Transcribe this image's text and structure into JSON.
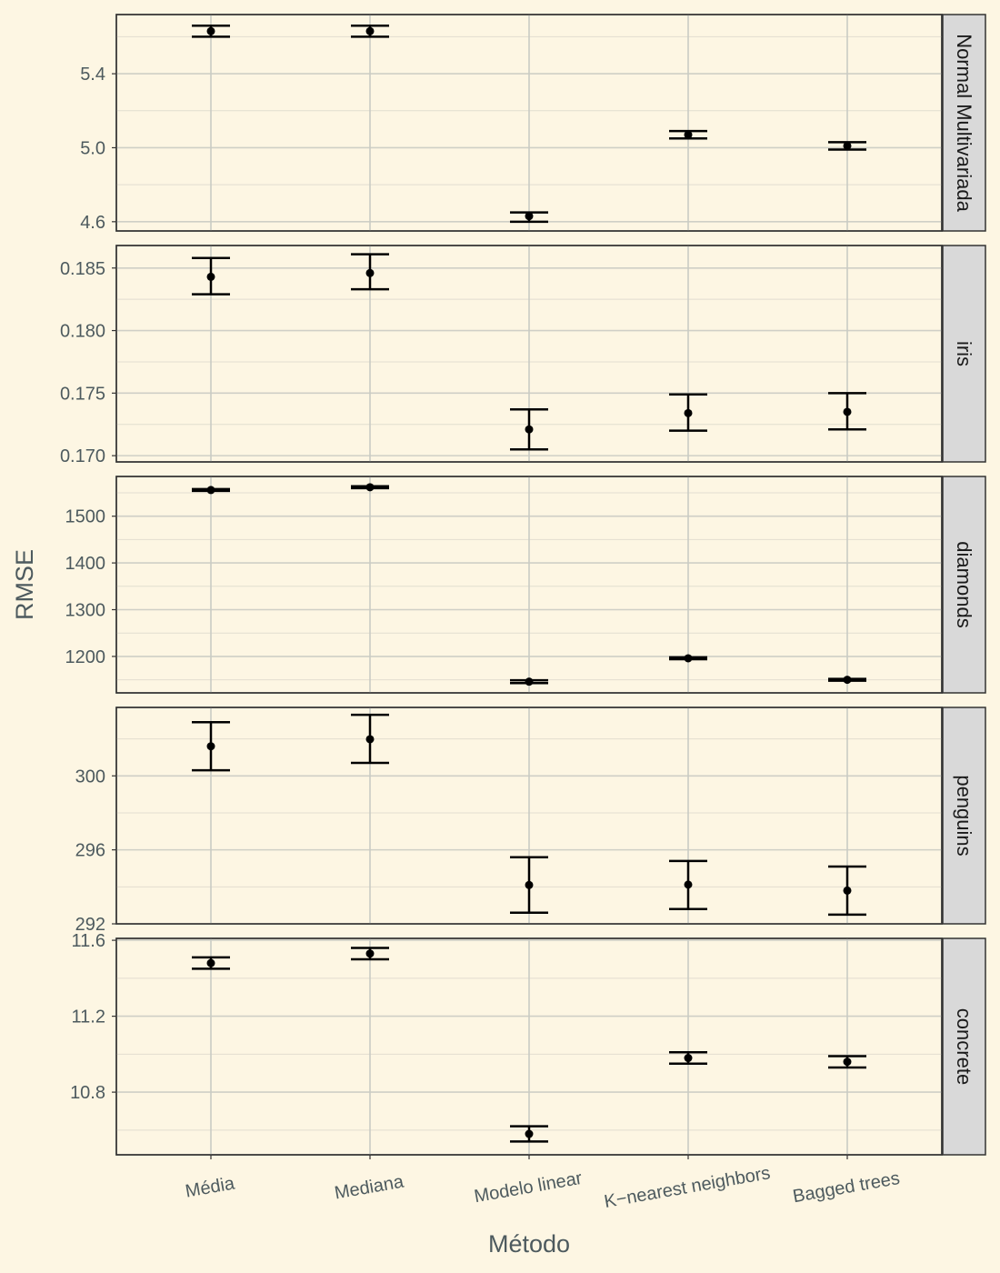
{
  "chart_data": {
    "type": "scatter",
    "subtype": "point-errorbar-facet",
    "xlabel": "Método",
    "ylabel": "RMSE",
    "categories": [
      "Média",
      "Mediana",
      "Modelo linear",
      "K−nearest neighbors",
      "Bagged trees"
    ],
    "grid": true,
    "facets": [
      {
        "strip": "Normal Multivariada",
        "ylim": [
          4.55,
          5.72
        ],
        "yticks": [
          4.6,
          5.0,
          5.4
        ],
        "ytick_labels": [
          "4.6",
          "5.0",
          "5.4"
        ],
        "values": [
          5.63,
          5.63,
          4.63,
          5.07,
          5.01
        ],
        "lower": [
          5.6,
          5.6,
          4.6,
          5.05,
          4.99
        ],
        "upper": [
          5.66,
          5.66,
          4.65,
          5.09,
          5.03
        ]
      },
      {
        "strip": "iris",
        "ylim": [
          0.1695,
          0.1868
        ],
        "yticks": [
          0.17,
          0.175,
          0.18,
          0.185
        ],
        "ytick_labels": [
          "0.170",
          "0.175",
          "0.180",
          "0.185"
        ],
        "values": [
          0.1843,
          0.1846,
          0.1721,
          0.1734,
          0.1735
        ],
        "lower": [
          0.1829,
          0.1833,
          0.1705,
          0.172,
          0.1721
        ],
        "upper": [
          0.1858,
          0.1861,
          0.1737,
          0.1749,
          0.175
        ]
      },
      {
        "strip": "diamonds",
        "ylim": [
          1122,
          1585
        ],
        "yticks": [
          1200,
          1300,
          1400,
          1500
        ],
        "ytick_labels": [
          "1200",
          "1300",
          "1400",
          "1500"
        ],
        "values": [
          1556,
          1562,
          1146,
          1196,
          1150
        ],
        "lower": [
          1554,
          1560,
          1143,
          1194,
          1148
        ],
        "upper": [
          1558,
          1564,
          1149,
          1198,
          1152
        ]
      },
      {
        "strip": "penguins",
        "ylim": [
          292,
          303.7
        ],
        "yticks": [
          292,
          296,
          300
        ],
        "ytick_labels": [
          "292",
          "296",
          "300"
        ],
        "values": [
          301.6,
          301.98,
          294.1,
          294.12,
          293.8
        ],
        "lower": [
          300.3,
          300.7,
          292.6,
          292.8,
          292.5
        ],
        "upper": [
          302.9,
          303.3,
          295.6,
          295.4,
          295.1
        ]
      },
      {
        "strip": "concrete",
        "ylim": [
          10.47,
          11.61
        ],
        "yticks": [
          10.8,
          11.2,
          11.6
        ],
        "ytick_labels": [
          "10.8",
          "11.2",
          "11.6"
        ],
        "values": [
          11.48,
          11.53,
          10.58,
          10.98,
          10.96
        ],
        "lower": [
          11.45,
          11.5,
          10.54,
          10.95,
          10.93
        ],
        "upper": [
          11.51,
          11.56,
          10.62,
          11.01,
          10.99
        ]
      }
    ]
  }
}
